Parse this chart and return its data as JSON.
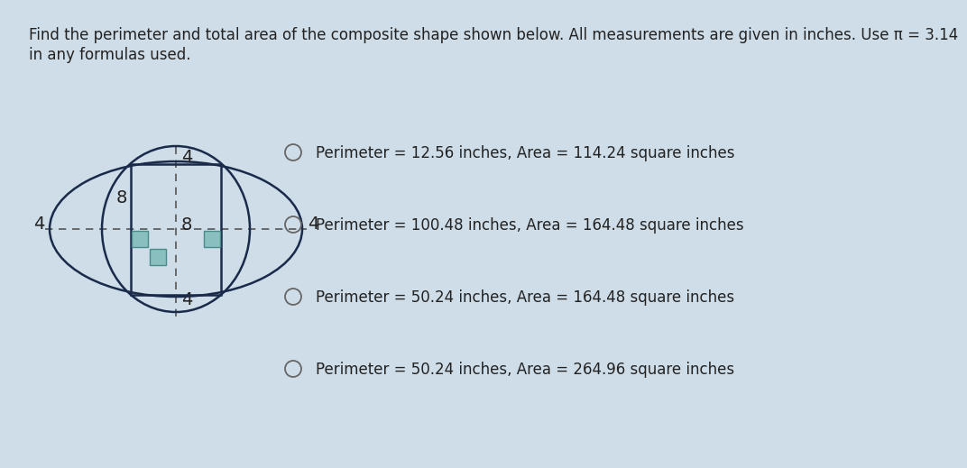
{
  "bg_color": "#cfdde8",
  "title_line1": "Find the perimeter and total area of the composite shape shown below. All measurements are given in inches. Use π = 3.14",
  "title_line2": "in any formulas used.",
  "options": [
    "Perimeter = 12.56 inches, Area = 114.24 square inches",
    "Perimeter = 100.48 inches, Area = 164.48 square inches",
    "Perimeter = 50.24 inches, Area = 164.48 square inches",
    "Perimeter = 50.24 inches, Area = 264.96 square inches"
  ],
  "square_fill": "#8abfbf",
  "text_color": "#222222",
  "option_fontsize": 12,
  "title_fontsize": 12,
  "label_fontsize": 14,
  "edge_color": "#1a2a4a",
  "dash_color": "#555555"
}
